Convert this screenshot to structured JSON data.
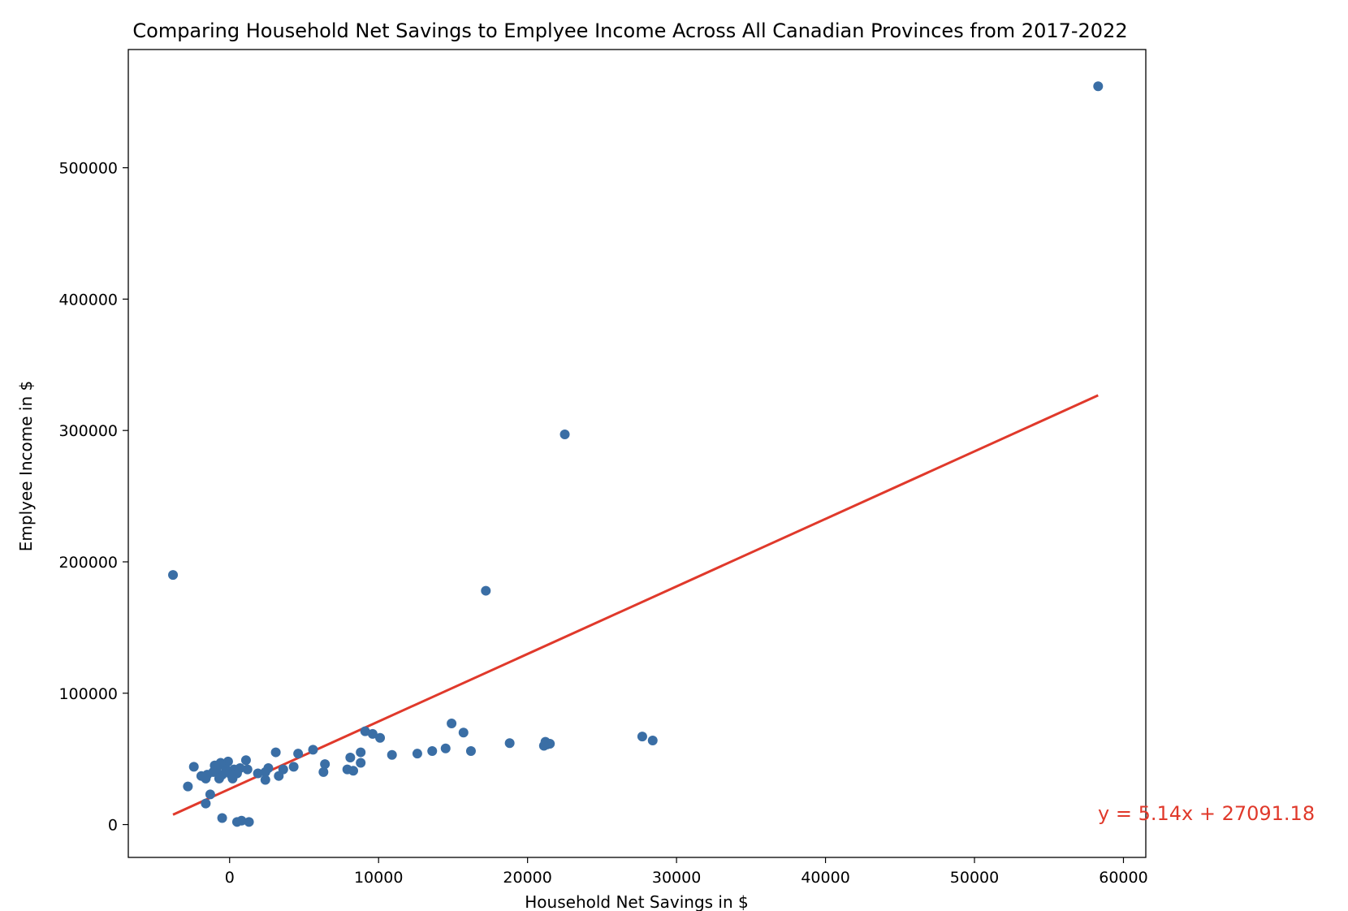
{
  "chart_data": {
    "type": "scatter",
    "title": "Comparing Household Net Savings to Emplyee Income Across All Canadian Provinces from 2017-2022",
    "xlabel": "Household Net Savings in $",
    "ylabel": "Emplyee Income in $",
    "xlim": [
      -6800,
      61500
    ],
    "ylim": [
      -25000,
      590000
    ],
    "xticks": [
      0,
      10000,
      20000,
      30000,
      40000,
      50000,
      60000
    ],
    "yticks": [
      0,
      100000,
      200000,
      300000,
      400000,
      500000
    ],
    "grid": false,
    "legend": "none",
    "point_color": "#3a6ea5",
    "line_color": "#e0392b",
    "series": [
      {
        "points": [
          [
            58300,
            562000
          ],
          [
            22500,
            297000
          ],
          [
            -3800,
            190000
          ],
          [
            17200,
            178000
          ],
          [
            14900,
            77000
          ],
          [
            15700,
            70000
          ],
          [
            9100,
            71000
          ],
          [
            9600,
            69000
          ],
          [
            10100,
            66000
          ],
          [
            27700,
            67000
          ],
          [
            28400,
            64000
          ],
          [
            18800,
            62000
          ],
          [
            21200,
            63000
          ],
          [
            21300,
            61000
          ],
          [
            21500,
            61500
          ],
          [
            21100,
            60000
          ],
          [
            14500,
            58000
          ],
          [
            13600,
            56000
          ],
          [
            16200,
            56000
          ],
          [
            12600,
            54000
          ],
          [
            10900,
            53000
          ],
          [
            5600,
            57000
          ],
          [
            4600,
            54000
          ],
          [
            3100,
            55000
          ],
          [
            8800,
            55000
          ],
          [
            8100,
            51000
          ],
          [
            8800,
            47000
          ],
          [
            7900,
            42000
          ],
          [
            8300,
            41000
          ],
          [
            6400,
            46000
          ],
          [
            6300,
            40000
          ],
          [
            4300,
            44000
          ],
          [
            3600,
            42000
          ],
          [
            3300,
            37000
          ],
          [
            2600,
            43000
          ],
          [
            2400,
            40000
          ],
          [
            2400,
            34000
          ],
          [
            1900,
            39000
          ],
          [
            1100,
            49000
          ],
          [
            1200,
            42000
          ],
          [
            700,
            43000
          ],
          [
            500,
            39000
          ],
          [
            300,
            42000
          ],
          [
            200,
            35000
          ],
          [
            100,
            38000
          ],
          [
            -100,
            48000
          ],
          [
            -200,
            41000
          ],
          [
            -300,
            44000
          ],
          [
            -500,
            38000
          ],
          [
            -600,
            47000
          ],
          [
            -700,
            35000
          ],
          [
            -900,
            42000
          ],
          [
            -1000,
            45000
          ],
          [
            -1100,
            40000
          ],
          [
            -1500,
            38000
          ],
          [
            -1600,
            35000
          ],
          [
            -1900,
            37000
          ],
          [
            -2400,
            44000
          ],
          [
            -2800,
            29000
          ],
          [
            -1300,
            23000
          ],
          [
            -1600,
            16000
          ],
          [
            -500,
            5000
          ],
          [
            500,
            2000
          ],
          [
            800,
            3000
          ],
          [
            1300,
            2000
          ]
        ]
      }
    ],
    "regression": {
      "x_range": [
        -3800,
        58300
      ],
      "slope": 5.14,
      "intercept": 27091.18,
      "label": "y = 5.14x + 27091.18"
    }
  }
}
